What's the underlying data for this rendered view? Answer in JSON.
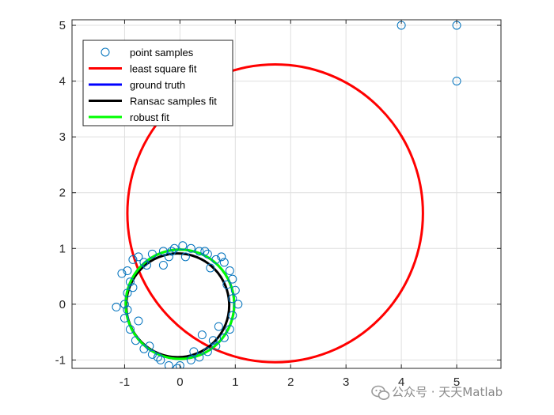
{
  "chart_data": {
    "type": "scatter",
    "xlim": [
      -1.95,
      5.8
    ],
    "ylim": [
      -1.15,
      5.1
    ],
    "xticks": [
      -1,
      0,
      1,
      2,
      3,
      4,
      5
    ],
    "yticks": [
      -1,
      0,
      1,
      2,
      3,
      4,
      5
    ],
    "xtick_labels": [
      "-1",
      "0",
      "1",
      "2",
      "3",
      "4",
      "5"
    ],
    "ytick_labels": [
      "-1",
      "0",
      "1",
      "2",
      "3",
      "4",
      "5"
    ],
    "grid": true,
    "legend_position": "top-left",
    "series": [
      {
        "name": "point samples",
        "kind": "markers",
        "color": "#0072bd",
        "points": [
          [
            4,
            5
          ],
          [
            5,
            5
          ],
          [
            5,
            4
          ],
          [
            -1.15,
            -0.05
          ],
          [
            -1.05,
            0.55
          ],
          [
            -0.95,
            0.6
          ],
          [
            -0.85,
            0.8
          ],
          [
            -0.75,
            0.85
          ],
          [
            -0.65,
            0.75
          ],
          [
            -0.5,
            0.9
          ],
          [
            -0.3,
            0.95
          ],
          [
            -0.1,
            1.0
          ],
          [
            0.05,
            1.05
          ],
          [
            0.2,
            1.0
          ],
          [
            0.35,
            0.95
          ],
          [
            0.5,
            0.9
          ],
          [
            0.65,
            0.8
          ],
          [
            0.8,
            0.75
          ],
          [
            0.9,
            0.6
          ],
          [
            0.95,
            0.45
          ],
          [
            1.0,
            0.25
          ],
          [
            1.05,
            0.0
          ],
          [
            0.95,
            -0.2
          ],
          [
            0.9,
            -0.45
          ],
          [
            0.8,
            -0.6
          ],
          [
            0.65,
            -0.75
          ],
          [
            0.5,
            -0.85
          ],
          [
            0.35,
            -0.95
          ],
          [
            0.2,
            -1.0
          ],
          [
            0.0,
            -1.1
          ],
          [
            -0.2,
            -1.1
          ],
          [
            -0.35,
            -1.0
          ],
          [
            -0.5,
            -0.9
          ],
          [
            -0.65,
            -0.8
          ],
          [
            -0.8,
            -0.65
          ],
          [
            -0.9,
            -0.45
          ],
          [
            -1.0,
            -0.25
          ],
          [
            -0.95,
            0.2
          ],
          [
            -0.9,
            0.4
          ],
          [
            -0.3,
            0.7
          ],
          [
            0.55,
            0.65
          ],
          [
            0.85,
            0.35
          ],
          [
            0.4,
            -0.55
          ],
          [
            -0.75,
            -0.3
          ],
          [
            -0.2,
            0.85
          ],
          [
            0.1,
            0.85
          ],
          [
            0.6,
            -0.65
          ],
          [
            -0.55,
            -0.75
          ],
          [
            -1.0,
            0.0
          ],
          [
            -0.85,
            0.3
          ],
          [
            0.95,
            0.1
          ],
          [
            -0.6,
            0.7
          ],
          [
            0.75,
            0.85
          ],
          [
            -0.05,
            -1.15
          ],
          [
            0.25,
            -0.85
          ],
          [
            -0.4,
            -0.95
          ],
          [
            0.7,
            -0.4
          ],
          [
            -0.95,
            -0.1
          ],
          [
            0.45,
            0.95
          ],
          [
            -0.15,
            0.95
          ]
        ]
      },
      {
        "name": "least square fit",
        "kind": "circle",
        "color": "#ff0000",
        "center": [
          1.72,
          1.63
        ],
        "radius": 2.67
      },
      {
        "name": "ground truth",
        "kind": "circle",
        "color": "#0000ff",
        "center": [
          0.0,
          0.0
        ],
        "radius": 0.98
      },
      {
        "name": "Ransac samples fit",
        "kind": "circle",
        "color": "#000000",
        "center": [
          -0.04,
          -0.02
        ],
        "radius": 0.93
      },
      {
        "name": "robust fit",
        "kind": "circle",
        "color": "#00ff00",
        "center": [
          0.0,
          0.0
        ],
        "radius": 0.98
      }
    ]
  },
  "watermark": {
    "text": "公众号 · 天天Matlab",
    "icon": "wechat-icon"
  }
}
